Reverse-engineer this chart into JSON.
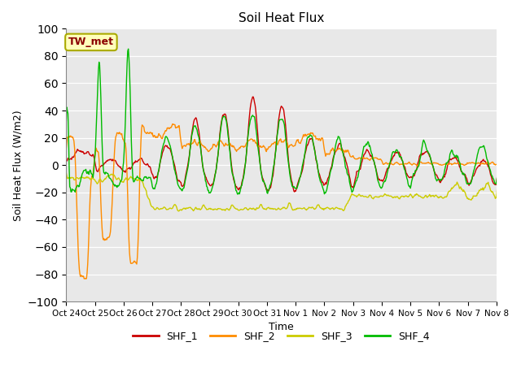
{
  "title": "Soil Heat Flux",
  "xlabel": "Time",
  "ylabel": "Soil Heat Flux (W/m2)",
  "ylim": [
    -100,
    100
  ],
  "yticks": [
    -100,
    -80,
    -60,
    -40,
    -20,
    0,
    20,
    40,
    60,
    80,
    100
  ],
  "x_tick_labels": [
    "Oct 24",
    "Oct 25",
    "Oct 26",
    "Oct 27",
    "Oct 28",
    "Oct 29",
    "Oct 30",
    "Oct 31",
    "Nov 1",
    "Nov 2",
    "Nov 3",
    "Nov 4",
    "Nov 5",
    "Nov 6",
    "Nov 7",
    "Nov 8"
  ],
  "annotation_text": "TW_met",
  "annotation_color": "#8B0000",
  "annotation_bg": "#FFFFBB",
  "colors": {
    "SHF_1": "#CC0000",
    "SHF_2": "#FF8C00",
    "SHF_3": "#CCCC00",
    "SHF_4": "#00BB00"
  },
  "bg_color": "#E8E8E8",
  "legend_labels": [
    "SHF_1",
    "SHF_2",
    "SHF_3",
    "SHF_4"
  ]
}
